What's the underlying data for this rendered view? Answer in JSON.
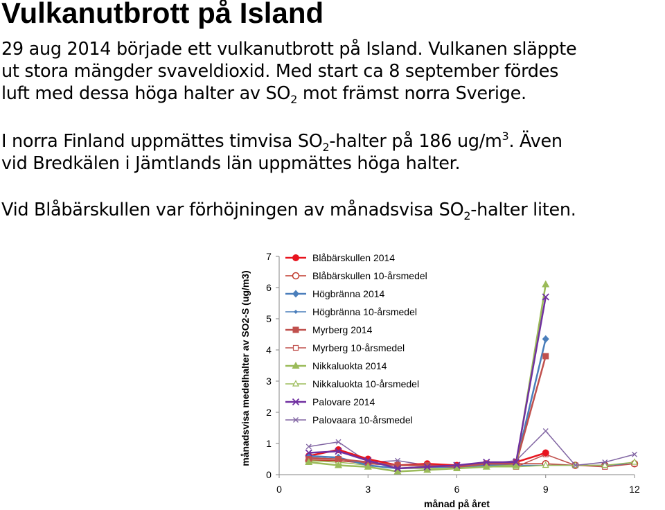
{
  "title": "Vulkanutbrott på Island",
  "paragraph1": {
    "line1": "29 aug 2014 började ett vulkanutbrott på Island. Vulkanen släppte",
    "line2": "ut stora mängder svaveldioxid. Med start ca 8 september fördes",
    "line3_a": "luft med dessa höga halter av SO",
    "line3_sub": "2",
    "line3_b": " mot främst norra Sverige."
  },
  "paragraph2": {
    "line1_a": "I norra Finland uppmättes timvisa SO",
    "line1_sub": "2",
    "line1_b": "-halter på 186 ug/m",
    "line1_sup": "3",
    "line1_c": ". Även",
    "line2": "vid Bredkälen i Jämtlands län uppmättes höga halter."
  },
  "paragraph3": {
    "line1_a": "Vid Blåbärskullen var förhöjningen av månadsvisa SO",
    "line1_sub": "2",
    "line1_b": "-halter liten."
  },
  "chart_data": {
    "type": "line",
    "title": "",
    "xlabel": "månad på året",
    "ylabel": "månadsvisa medelhalter av SO2-S (ug/m3)",
    "xlim": [
      0,
      12
    ],
    "ylim": [
      0,
      7
    ],
    "xticks": [
      0,
      3,
      6,
      9,
      12
    ],
    "yticks": [
      0,
      1,
      2,
      3,
      4,
      5,
      6,
      7
    ],
    "grid": false,
    "legend_position": "top-right",
    "x": [
      1,
      2,
      3,
      4,
      5,
      6,
      7,
      8,
      9,
      10,
      11,
      12
    ],
    "series": [
      {
        "name": "Blåbärskullen 2014",
        "color": "#E8141E",
        "marker": "circle-filled",
        "values": [
          0.6,
          0.8,
          0.5,
          0.3,
          0.35,
          0.3,
          0.35,
          0.4,
          0.7,
          null,
          null,
          null
        ]
      },
      {
        "name": "Blåbärskullen 10-årsmedel",
        "color": "#C0392B",
        "marker": "circle-open",
        "values": [
          0.45,
          0.45,
          0.35,
          0.3,
          0.3,
          0.25,
          0.3,
          0.35,
          0.35,
          0.3,
          0.3,
          0.35
        ]
      },
      {
        "name": "Högbränna 2014",
        "color": "#4A7EBB",
        "marker": "diamond-filled",
        "values": [
          0.6,
          0.55,
          0.3,
          0.2,
          0.25,
          0.25,
          0.3,
          0.35,
          4.35,
          null,
          null,
          null
        ]
      },
      {
        "name": "Högbränna 10-årsmedel",
        "color": "#4A7EBB",
        "marker": "diamond-small",
        "values": [
          0.55,
          0.5,
          0.35,
          0.3,
          0.3,
          0.3,
          0.3,
          0.3,
          0.3,
          0.3,
          0.3,
          0.35
        ]
      },
      {
        "name": "Myrberg 2014",
        "color": "#C0504D",
        "marker": "square-filled",
        "values": [
          0.5,
          0.5,
          0.4,
          0.3,
          0.3,
          0.25,
          0.35,
          0.35,
          3.8,
          null,
          null,
          null
        ]
      },
      {
        "name": "Myrberg 10-årsmedel",
        "color": "#C0504D",
        "marker": "square-open",
        "values": [
          0.55,
          0.5,
          0.35,
          0.3,
          0.3,
          0.25,
          0.3,
          0.25,
          0.65,
          0.3,
          0.25,
          0.35
        ]
      },
      {
        "name": "Nikkaluokta 2014",
        "color": "#9BBB59",
        "marker": "triangle-filled",
        "values": [
          0.4,
          0.3,
          0.25,
          0.1,
          0.15,
          0.2,
          0.25,
          0.3,
          6.1,
          null,
          null,
          null
        ]
      },
      {
        "name": "Nikkaluokta 10-årsmedel",
        "color": "#9BBB59",
        "marker": "triangle-open",
        "values": [
          0.45,
          0.4,
          0.3,
          0.2,
          0.2,
          0.2,
          0.25,
          0.25,
          0.3,
          0.3,
          0.3,
          0.4
        ]
      },
      {
        "name": "Palovare 2014",
        "color": "#7030A0",
        "marker": "x",
        "values": [
          0.7,
          0.75,
          0.45,
          0.2,
          0.25,
          0.3,
          0.4,
          0.4,
          5.7,
          null,
          null,
          null
        ]
      },
      {
        "name": "Palovaara 10-årsmedel",
        "color": "#8064A2",
        "marker": "x-small",
        "values": [
          0.9,
          1.05,
          0.4,
          0.45,
          0.3,
          0.3,
          0.35,
          0.45,
          1.4,
          0.3,
          0.4,
          0.65
        ]
      }
    ]
  }
}
